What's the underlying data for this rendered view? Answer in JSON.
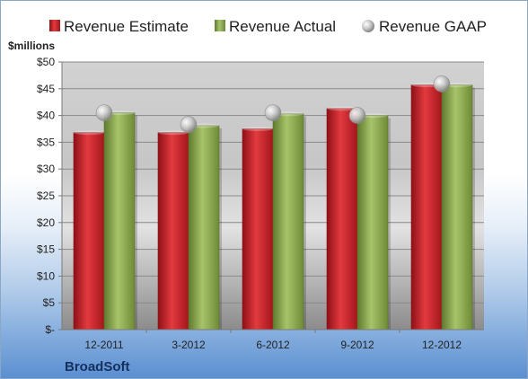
{
  "chart_data": {
    "type": "bar",
    "ylabel": "$millions",
    "company": "BroadSoft",
    "categories": [
      "12-2011",
      "3-2012",
      "6-2012",
      "9-2012",
      "12-2012"
    ],
    "ylim": [
      0,
      50
    ],
    "yticks": [
      0,
      5,
      10,
      15,
      20,
      25,
      30,
      35,
      40,
      45,
      50
    ],
    "ytick_labels": [
      "$-",
      "$5",
      "$10",
      "$15",
      "$20",
      "$25",
      "$30",
      "$35",
      "$40",
      "$45",
      "$50"
    ],
    "grid": true,
    "legend_position": "top",
    "series": [
      {
        "name": "Revenue Estimate",
        "type": "bar",
        "color": "#c0272d",
        "values": [
          36.8,
          36.8,
          37.5,
          41.3,
          45.7
        ]
      },
      {
        "name": "Revenue Actual",
        "type": "bar",
        "color": "#8aa54b",
        "values": [
          40.5,
          38.1,
          40.3,
          40.0,
          45.7
        ]
      },
      {
        "name": "Revenue GAAP",
        "type": "marker",
        "color": "#b8b8b8",
        "values": [
          40.5,
          38.3,
          40.5,
          40.0,
          45.9
        ]
      }
    ]
  }
}
